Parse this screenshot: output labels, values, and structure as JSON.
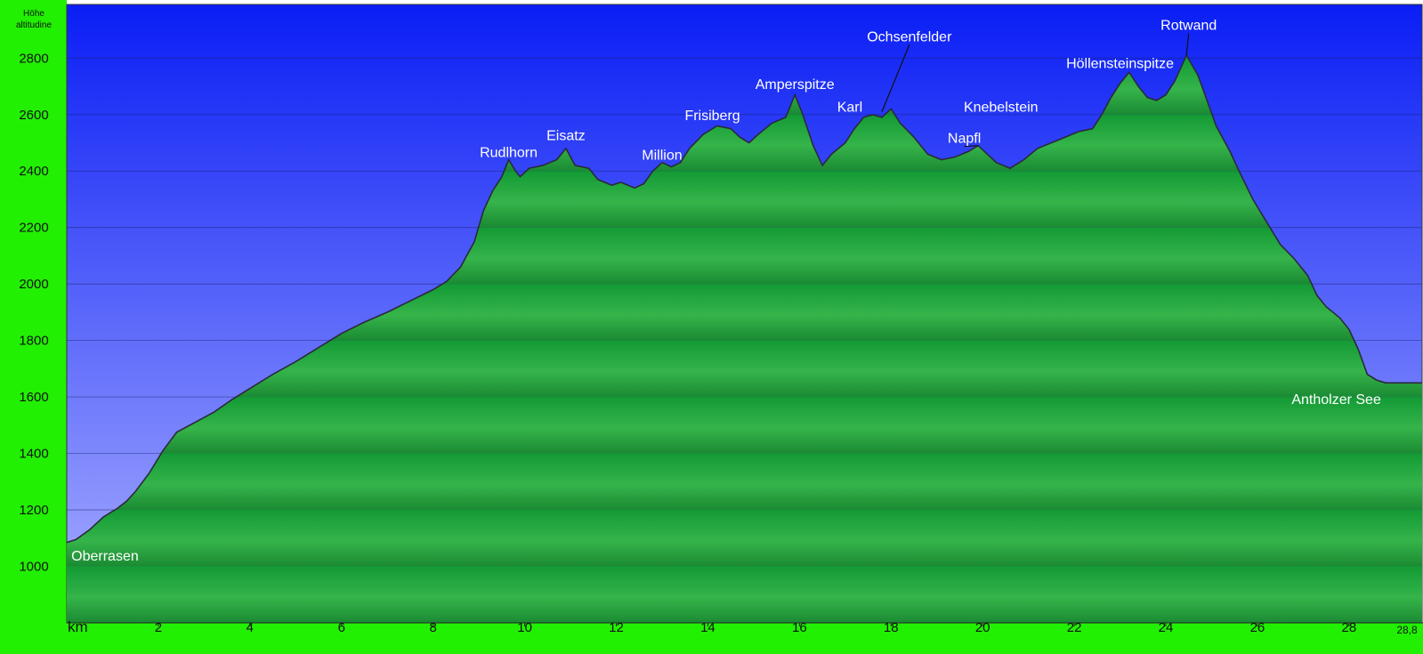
{
  "colors": {
    "panel": "#22f002",
    "sky_top": "#0a1ef5",
    "sky_bottom": "#aab0ff",
    "fill_light": "#2eb044",
    "fill_dark": "#137528",
    "outline": "#2a2a3a",
    "grid": "#1b1f66",
    "label": "#ffffff"
  },
  "chart_data": {
    "type": "area",
    "ylabel": [
      "Höhe",
      "altitudine"
    ],
    "xlabel": "km",
    "xlim": [
      0,
      28.8
    ],
    "ylim": [
      800,
      2990
    ],
    "grid": true,
    "y_ticks": [
      1000,
      1200,
      1400,
      1600,
      1800,
      2000,
      2200,
      2400,
      2600,
      2800
    ],
    "x_ticks": [
      2,
      4,
      6,
      8,
      10,
      12,
      14,
      16,
      18,
      20,
      22,
      24,
      26,
      28
    ],
    "x_end_label": "28,8",
    "profile": [
      [
        0,
        1085
      ],
      [
        0.2,
        1095
      ],
      [
        0.5,
        1130
      ],
      [
        0.8,
        1175
      ],
      [
        1.1,
        1205
      ],
      [
        1.3,
        1230
      ],
      [
        1.5,
        1265
      ],
      [
        1.8,
        1330
      ],
      [
        2.1,
        1410
      ],
      [
        2.4,
        1475
      ],
      [
        2.8,
        1510
      ],
      [
        3.2,
        1545
      ],
      [
        3.6,
        1590
      ],
      [
        4.0,
        1630
      ],
      [
        4.5,
        1680
      ],
      [
        5.0,
        1725
      ],
      [
        5.5,
        1775
      ],
      [
        6.0,
        1825
      ],
      [
        6.5,
        1865
      ],
      [
        7.0,
        1900
      ],
      [
        7.5,
        1940
      ],
      [
        8.0,
        1980
      ],
      [
        8.3,
        2010
      ],
      [
        8.6,
        2060
      ],
      [
        8.9,
        2150
      ],
      [
        9.1,
        2260
      ],
      [
        9.3,
        2330
      ],
      [
        9.5,
        2380
      ],
      [
        9.65,
        2440
      ],
      [
        9.8,
        2400
      ],
      [
        9.9,
        2380
      ],
      [
        10.1,
        2410
      ],
      [
        10.4,
        2420
      ],
      [
        10.7,
        2440
      ],
      [
        10.9,
        2480
      ],
      [
        11.1,
        2420
      ],
      [
        11.4,
        2410
      ],
      [
        11.6,
        2370
      ],
      [
        11.9,
        2350
      ],
      [
        12.1,
        2360
      ],
      [
        12.4,
        2340
      ],
      [
        12.6,
        2355
      ],
      [
        12.8,
        2400
      ],
      [
        13.0,
        2430
      ],
      [
        13.2,
        2415
      ],
      [
        13.4,
        2430
      ],
      [
        13.6,
        2480
      ],
      [
        13.9,
        2530
      ],
      [
        14.2,
        2560
      ],
      [
        14.5,
        2550
      ],
      [
        14.7,
        2520
      ],
      [
        14.9,
        2500
      ],
      [
        15.1,
        2530
      ],
      [
        15.4,
        2570
      ],
      [
        15.7,
        2590
      ],
      [
        15.9,
        2670
      ],
      [
        16.05,
        2610
      ],
      [
        16.3,
        2490
      ],
      [
        16.5,
        2420
      ],
      [
        16.7,
        2460
      ],
      [
        17.0,
        2500
      ],
      [
        17.2,
        2550
      ],
      [
        17.4,
        2590
      ],
      [
        17.6,
        2600
      ],
      [
        17.8,
        2590
      ],
      [
        18.0,
        2620
      ],
      [
        18.2,
        2570
      ],
      [
        18.5,
        2520
      ],
      [
        18.8,
        2460
      ],
      [
        19.1,
        2440
      ],
      [
        19.4,
        2450
      ],
      [
        19.7,
        2470
      ],
      [
        19.9,
        2490
      ],
      [
        20.1,
        2460
      ],
      [
        20.3,
        2430
      ],
      [
        20.6,
        2410
      ],
      [
        20.9,
        2440
      ],
      [
        21.2,
        2480
      ],
      [
        21.5,
        2500
      ],
      [
        21.8,
        2520
      ],
      [
        22.1,
        2540
      ],
      [
        22.4,
        2550
      ],
      [
        22.6,
        2600
      ],
      [
        22.8,
        2660
      ],
      [
        23.0,
        2710
      ],
      [
        23.2,
        2750
      ],
      [
        23.4,
        2700
      ],
      [
        23.6,
        2660
      ],
      [
        23.8,
        2650
      ],
      [
        24.0,
        2670
      ],
      [
        24.2,
        2720
      ],
      [
        24.45,
        2810
      ],
      [
        24.7,
        2740
      ],
      [
        24.9,
        2650
      ],
      [
        25.1,
        2560
      ],
      [
        25.4,
        2470
      ],
      [
        25.6,
        2400
      ],
      [
        25.9,
        2300
      ],
      [
        26.2,
        2220
      ],
      [
        26.5,
        2140
      ],
      [
        26.8,
        2090
      ],
      [
        27.1,
        2030
      ],
      [
        27.3,
        1960
      ],
      [
        27.5,
        1920
      ],
      [
        27.8,
        1880
      ],
      [
        28.0,
        1840
      ],
      [
        28.2,
        1770
      ],
      [
        28.4,
        1680
      ],
      [
        28.6,
        1660
      ],
      [
        28.8,
        1650
      ]
    ],
    "annotations": [
      {
        "label": "Oberrasen",
        "x": 0.1,
        "y": 1020,
        "anchor": "start"
      },
      {
        "label": "Rudlhorn",
        "x": 9.65,
        "y": 2450,
        "anchor": "middle"
      },
      {
        "label": "Eisatz",
        "x": 10.9,
        "y": 2510,
        "anchor": "middle"
      },
      {
        "label": "Million",
        "x": 13.0,
        "y": 2440,
        "anchor": "middle"
      },
      {
        "label": "Frisiberg",
        "x": 14.1,
        "y": 2580,
        "anchor": "middle"
      },
      {
        "label": "Amperspitze",
        "x": 15.9,
        "y": 2690,
        "anchor": "middle"
      },
      {
        "label": "Ochsenfelder",
        "x": 18.4,
        "y": 2860,
        "anchor": "middle",
        "pointer": [
          17.8,
          2610
        ]
      },
      {
        "label": "Karl",
        "x": 17.1,
        "y": 2610,
        "anchor": "middle"
      },
      {
        "label": "Knebelstein",
        "x": 20.4,
        "y": 2610,
        "anchor": "middle"
      },
      {
        "label": "Napfl",
        "x": 19.6,
        "y": 2500,
        "anchor": "middle",
        "pointer": [
          19.9,
          2490
        ]
      },
      {
        "label": "Höllensteinspitze",
        "x": 23.0,
        "y": 2765,
        "anchor": "middle"
      },
      {
        "label": "Rotwand",
        "x": 24.5,
        "y": 2900,
        "anchor": "middle",
        "pointer": [
          24.45,
          2810
        ]
      },
      {
        "label": "Antholzer See",
        "x": 28.7,
        "y": 1575,
        "anchor": "end"
      }
    ]
  }
}
